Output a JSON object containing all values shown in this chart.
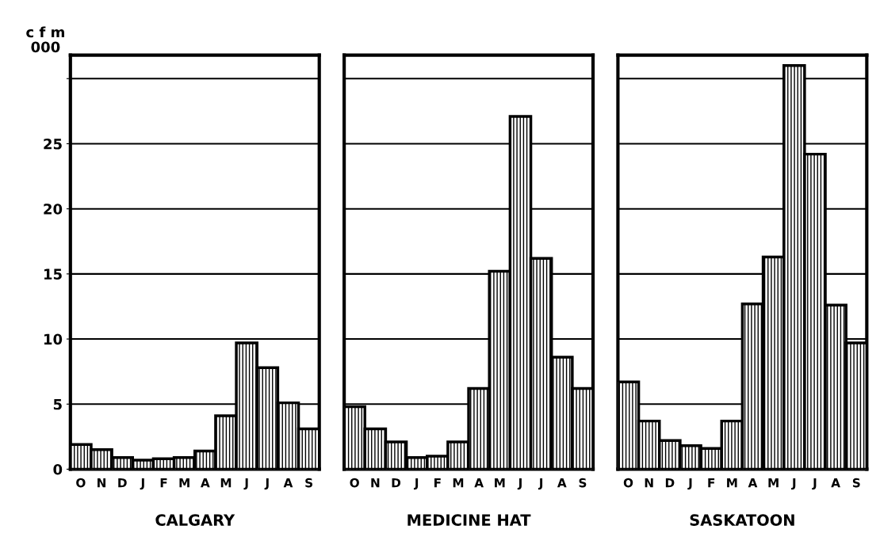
{
  "chart_data": [
    {
      "type": "bar",
      "xlabel": "CALGARY",
      "ylabel": "c f m\n000",
      "categories": [
        "O",
        "N",
        "D",
        "J",
        "F",
        "M",
        "A",
        "M",
        "J",
        "J",
        "A",
        "S"
      ],
      "values": [
        1.9,
        1.5,
        0.9,
        0.7,
        0.8,
        0.9,
        1.4,
        4.1,
        9.7,
        7.8,
        5.1,
        3.1
      ],
      "color": "#000000",
      "ylim": [
        0,
        31.8
      ],
      "yticks": [
        0,
        5,
        10,
        15,
        20,
        25,
        {
          "value": 30,
          "label": null
        }
      ],
      "grid": "y"
    },
    {
      "type": "bar",
      "xlabel": "MEDICINE HAT",
      "categories": [
        "O",
        "N",
        "D",
        "J",
        "F",
        "M",
        "A",
        "M",
        "J",
        "J",
        "A",
        "S"
      ],
      "values": [
        4.8,
        3.1,
        2.1,
        0.9,
        1.0,
        2.1,
        6.2,
        15.2,
        27.1,
        16.2,
        8.6,
        6.2
      ],
      "color": "#000000",
      "ylim": [
        0,
        31.8
      ],
      "yticks": [
        0,
        5,
        10,
        15,
        20,
        25,
        30
      ],
      "grid": "y",
      "tick_labels": "x"
    },
    {
      "type": "bar",
      "xlabel": "SASKATOON",
      "categories": [
        "O",
        "N",
        "D",
        "J",
        "F",
        "M",
        "A",
        "M",
        "J",
        "J",
        "A",
        "S"
      ],
      "values": [
        6.7,
        3.7,
        2.2,
        1.8,
        1.6,
        3.7,
        12.7,
        16.3,
        31.0,
        24.2,
        12.6,
        9.7
      ],
      "color": "#000000",
      "ylim": [
        0,
        31.8
      ],
      "yticks": [
        0,
        5,
        10,
        15,
        20,
        25,
        30
      ],
      "grid": "y",
      "tick_labels": "x"
    }
  ]
}
